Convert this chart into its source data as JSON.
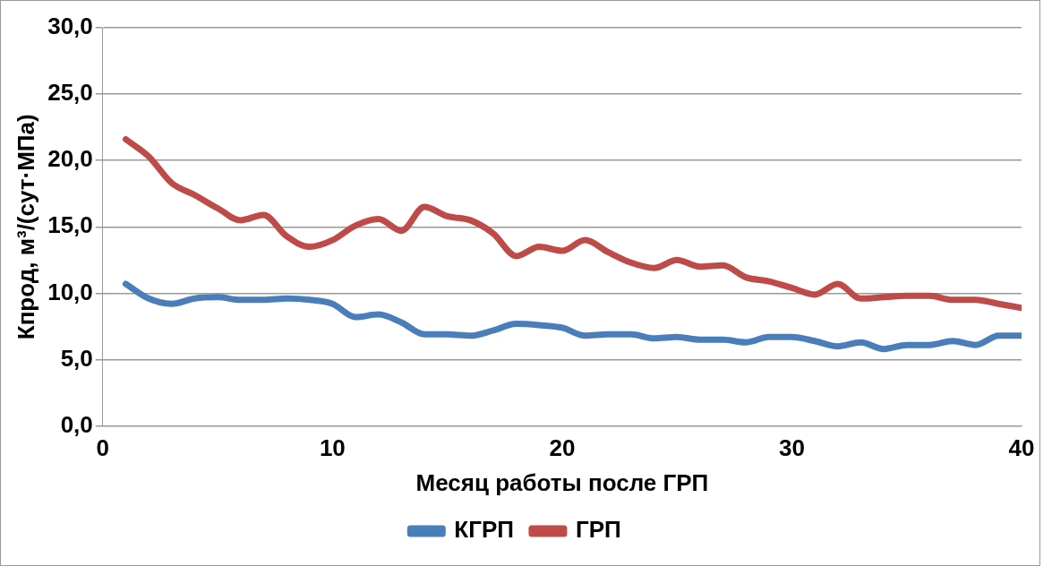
{
  "chart_data": {
    "type": "line",
    "xlabel": "Месяц работы после ГРП",
    "ylabel": "Кпрод, м³/(сут·МПа)",
    "x": [
      1,
      2,
      3,
      4,
      5,
      6,
      7,
      8,
      9,
      10,
      11,
      12,
      13,
      14,
      15,
      16,
      17,
      18,
      19,
      20,
      21,
      22,
      23,
      24,
      25,
      26,
      27,
      28,
      29,
      30,
      31,
      32,
      33,
      34,
      35,
      36,
      37,
      38,
      39,
      40
    ],
    "series": [
      {
        "name": "КГРП",
        "color": "#4a7ebb",
        "values": [
          10.7,
          9.6,
          9.2,
          9.6,
          9.7,
          9.5,
          9.5,
          9.6,
          9.5,
          9.2,
          8.2,
          8.4,
          7.8,
          6.9,
          6.9,
          6.8,
          7.2,
          7.7,
          7.6,
          7.4,
          6.8,
          6.9,
          6.9,
          6.6,
          6.7,
          6.5,
          6.5,
          6.3,
          6.7,
          6.7,
          6.4,
          6.0,
          6.3,
          5.8,
          6.1,
          6.1,
          6.4,
          6.1,
          6.8,
          6.8
        ]
      },
      {
        "name": "ГРП",
        "color": "#be4b48",
        "values": [
          21.6,
          20.3,
          18.3,
          17.4,
          16.4,
          15.5,
          15.9,
          14.3,
          13.5,
          14.0,
          15.1,
          15.6,
          14.7,
          16.5,
          15.8,
          15.5,
          14.5,
          12.8,
          13.5,
          13.2,
          14.0,
          13.1,
          12.3,
          11.9,
          12.5,
          12.0,
          12.1,
          11.2,
          10.9,
          10.4,
          9.9,
          10.7,
          9.6,
          9.7,
          9.8,
          9.8,
          9.5,
          9.5,
          9.2,
          8.9
        ]
      }
    ],
    "xlim": [
      0,
      40
    ],
    "xticks": [
      0,
      10,
      20,
      30,
      40
    ],
    "ylim": [
      0,
      30
    ],
    "yticks": [
      {
        "value": 0,
        "label": "0,0"
      },
      {
        "value": 5,
        "label": "5,0"
      },
      {
        "value": 10,
        "label": "10,0"
      },
      {
        "value": 15,
        "label": "15,0"
      },
      {
        "value": 20,
        "label": "20,0"
      },
      {
        "value": 25,
        "label": "25,0"
      },
      {
        "value": 30,
        "label": "30,0"
      }
    ],
    "grid": "y",
    "legend": "bottom",
    "marker": "none",
    "line_style": "solid"
  }
}
